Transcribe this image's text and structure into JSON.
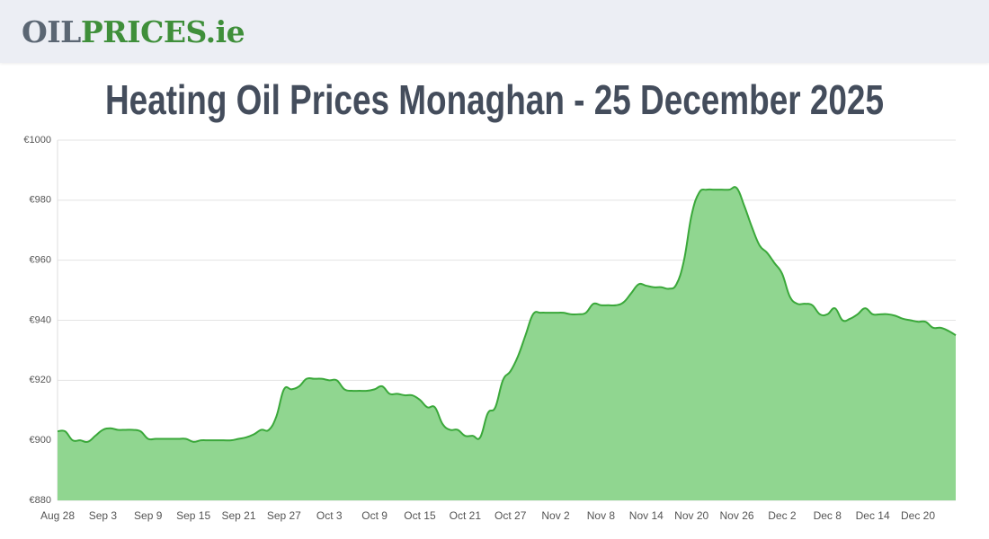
{
  "header": {
    "logo_dark": "OIL",
    "logo_green": "PRICES",
    "logo_suffix": ".ie"
  },
  "chart_data": {
    "type": "area",
    "title": "Heating Oil Prices Monaghan - 25 December 2025",
    "categories": [
      "Aug 28",
      null,
      null,
      null,
      null,
      null,
      "Sep 3",
      null,
      null,
      null,
      null,
      null,
      "Sep 9",
      null,
      null,
      null,
      null,
      null,
      "Sep 15",
      null,
      null,
      null,
      null,
      null,
      "Sep 21",
      null,
      null,
      null,
      null,
      null,
      "Sep 27",
      null,
      null,
      null,
      null,
      null,
      "Oct 3",
      null,
      null,
      null,
      null,
      null,
      "Oct 9",
      null,
      null,
      null,
      null,
      null,
      "Oct 15",
      null,
      null,
      null,
      null,
      null,
      "Oct 21",
      null,
      null,
      null,
      null,
      null,
      "Oct 27",
      null,
      null,
      null,
      null,
      null,
      "Nov 2",
      null,
      null,
      null,
      null,
      null,
      "Nov 8",
      null,
      null,
      null,
      null,
      null,
      "Nov 14",
      null,
      null,
      null,
      null,
      null,
      "Nov 20",
      null,
      null,
      null,
      null,
      null,
      "Nov 26",
      null,
      null,
      null,
      null,
      null,
      "Dec 2",
      null,
      null,
      null,
      null,
      null,
      "Dec 8",
      null,
      null,
      null,
      null,
      null,
      "Dec 14",
      null,
      null,
      null,
      null,
      null,
      "Dec 20",
      null,
      null,
      null,
      null,
      null
    ],
    "values": [
      903,
      903,
      900,
      900,
      899.5,
      901.5,
      903.5,
      904,
      903.5,
      903.5,
      903.5,
      903,
      900.5,
      900.5,
      900.5,
      900.5,
      900.5,
      900.5,
      899.5,
      900,
      900,
      900,
      900,
      900,
      900.5,
      901,
      902,
      903.5,
      903.5,
      908,
      917,
      917,
      918,
      920.5,
      920.5,
      920.5,
      920,
      920,
      917,
      916.5,
      916.5,
      916.5,
      917,
      918,
      915.5,
      915.5,
      915,
      915,
      913.5,
      911,
      911,
      905.5,
      903.5,
      903.5,
      901.5,
      901.5,
      901,
      909,
      911,
      920,
      923,
      928,
      935,
      942,
      942.5,
      942.5,
      942.5,
      942.5,
      942,
      942,
      942.5,
      945.5,
      945,
      945,
      945,
      946,
      949,
      952,
      951.5,
      951,
      951,
      950.5,
      952,
      960,
      975,
      982.5,
      983.5,
      983.5,
      983.5,
      983.5,
      984,
      978,
      971,
      965,
      962.5,
      959,
      955.5,
      948,
      945.5,
      945.5,
      945,
      942,
      942,
      944,
      940,
      940.5,
      942,
      944,
      942,
      942,
      942,
      941.5,
      940.5,
      940,
      939.5,
      939.5,
      937.5,
      937.5,
      936.5,
      935
    ],
    "color": "#3aa83a",
    "fill": "#90d690",
    "ylim": [
      880,
      1000
    ],
    "yticks": [
      {
        "value": 880,
        "label": "€880"
      },
      {
        "value": 900,
        "label": "€900"
      },
      {
        "value": 920,
        "label": "€920"
      },
      {
        "value": 940,
        "label": "€940"
      },
      {
        "value": 960,
        "label": "€960"
      },
      {
        "value": 980,
        "label": "€980"
      },
      {
        "value": 1000,
        "label": "€1000"
      }
    ],
    "grid": true
  }
}
